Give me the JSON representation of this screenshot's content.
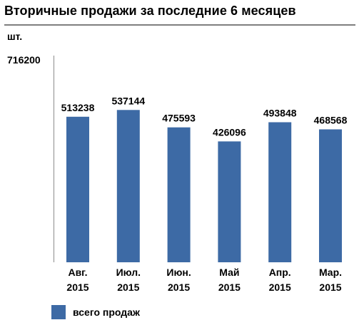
{
  "title": "Вторичные продажи за последние 6 месяцев",
  "chart_data": {
    "type": "bar",
    "unit_label": "шт.",
    "y_max_label": "716200",
    "ylim": [
      0,
      716200
    ],
    "categories": [
      [
        "Авг.",
        "2015"
      ],
      [
        "Июл.",
        "2015"
      ],
      [
        "Июн.",
        "2015"
      ],
      [
        "Май",
        "2015"
      ],
      [
        "Апр.",
        "2015"
      ],
      [
        "Мар.",
        "2015"
      ]
    ],
    "series": [
      {
        "name": "всего продаж",
        "color": "#3d6aa5",
        "values": [
          513238,
          537144,
          475593,
          426096,
          493848,
          468568
        ]
      }
    ],
    "legend_position": "bottom-left",
    "grid": false
  }
}
